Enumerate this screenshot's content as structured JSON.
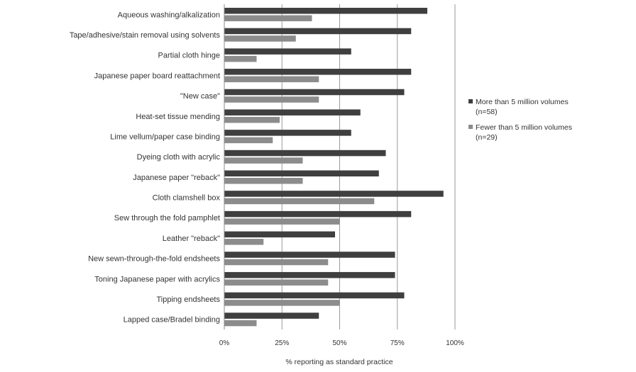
{
  "chart_data": {
    "type": "bar",
    "orientation": "horizontal",
    "title": "",
    "xlabel": "% reporting as standard practice",
    "ylabel": "",
    "xlim": [
      0,
      100
    ],
    "xticks": [
      0,
      25,
      50,
      75,
      100
    ],
    "xtick_labels": [
      "0%",
      "25%",
      "50%",
      "75%",
      "100%"
    ],
    "grid": "vertical",
    "legend_position": "right",
    "categories": [
      "Aqueous washing/alkalization",
      "Tape/adhesive/stain removal using solvents",
      "Partial cloth hinge",
      "Japanese paper board reattachment",
      "\"New case\"",
      "Heat-set tissue mending",
      "Lime vellum/paper case binding",
      "Dyeing cloth with acrylic",
      "Japanese paper \"reback\"",
      "Cloth clamshell box",
      "Sew through the fold pamphlet",
      "Leather \"reback\"",
      "New sewn-through-the-fold endsheets",
      "Toning Japanese paper with acrylics",
      "Tipping endsheets",
      "Lapped case/Bradel binding"
    ],
    "series": [
      {
        "name": "More than 5 million volumes (n=58)",
        "color": "#3f3f3f",
        "values": [
          88,
          81,
          55,
          81,
          78,
          59,
          55,
          70,
          67,
          95,
          81,
          48,
          74,
          74,
          78,
          41
        ]
      },
      {
        "name": "Fewer than 5 million volumes (n=29)",
        "color": "#8c8c8c",
        "values": [
          38,
          31,
          14,
          41,
          41,
          24,
          21,
          34,
          34,
          65,
          50,
          17,
          45,
          45,
          50,
          14
        ]
      }
    ]
  }
}
